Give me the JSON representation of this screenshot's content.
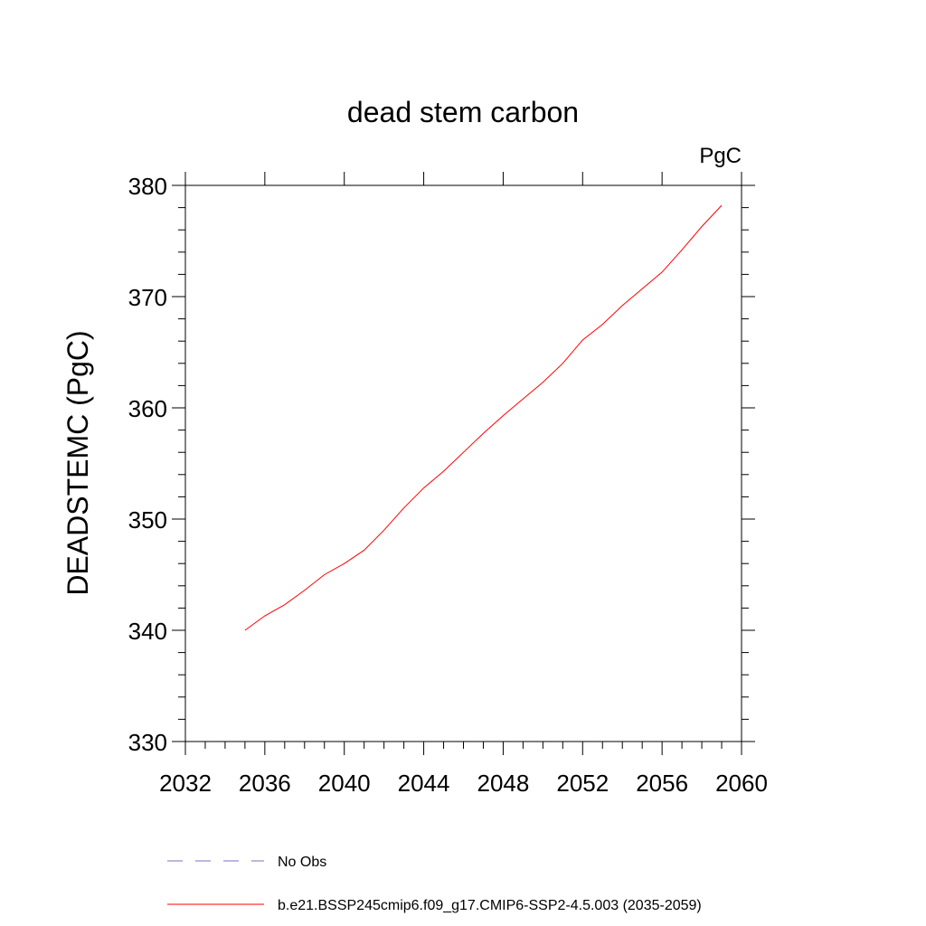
{
  "chart_data": {
    "type": "line",
    "title": "dead stem carbon",
    "units": "PgC",
    "xlabel": "",
    "ylabel": "DEADSTEMC  (PgC)",
    "xlim": [
      2032,
      2060
    ],
    "ylim": [
      330,
      380
    ],
    "xticks": [
      2032,
      2036,
      2040,
      2044,
      2048,
      2052,
      2056,
      2060
    ],
    "yticks": [
      330,
      340,
      350,
      360,
      370,
      380
    ],
    "x": [
      2035,
      2036,
      2037,
      2038,
      2039,
      2040,
      2041,
      2042,
      2043,
      2044,
      2045,
      2046,
      2047,
      2048,
      2049,
      2050,
      2051,
      2052,
      2053,
      2054,
      2055,
      2056,
      2057,
      2058,
      2059
    ],
    "series": [
      {
        "name": "b.e21.BSSP245cmip6.f09_g17.CMIP6-SSP2-4.5.003 (2035-2059)",
        "color": "#ff0000",
        "dash": "solid",
        "values": [
          340.0,
          341.3,
          342.3,
          343.6,
          345.0,
          346.0,
          347.2,
          349.0,
          351.0,
          352.8,
          354.3,
          356.0,
          357.7,
          359.3,
          360.8,
          362.3,
          364.0,
          366.1,
          367.5,
          369.2,
          370.7,
          372.2,
          374.2,
          376.3,
          378.2
        ]
      }
    ],
    "legend": [
      {
        "label": "No Obs",
        "color": "#7b6fc4",
        "dash": "dashed"
      },
      {
        "label": "b.e21.BSSP245cmip6.f09_g17.CMIP6-SSP2-4.5.003 (2035-2059)",
        "color": "#ff0000",
        "dash": "solid"
      }
    ],
    "legend_position": "bottom",
    "grid": false
  }
}
